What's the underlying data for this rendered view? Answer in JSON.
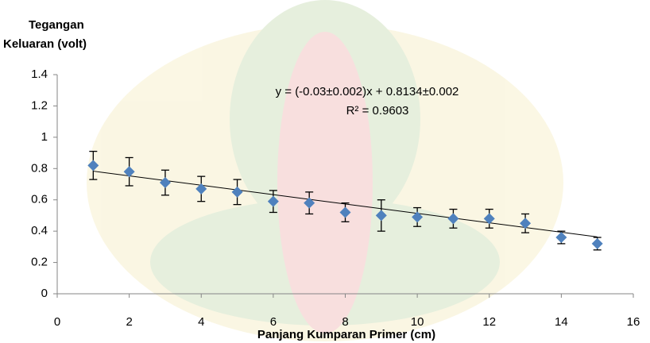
{
  "chart_data": {
    "type": "scatter",
    "ylabel": [
      "Tegangan",
      "Keluaran (volt)"
    ],
    "xlabel": "Panjang Kumparan Primer (cm)",
    "annotations": [
      "y = (-0.03±0.002)x + 0.8134±0.002",
      "R² = 0.9603"
    ],
    "xlim": [
      0,
      16
    ],
    "xticks": [
      0,
      2,
      4,
      6,
      8,
      10,
      12,
      14,
      16
    ],
    "ylim": [
      0,
      1.4
    ],
    "yticks": [
      0,
      0.2,
      0.4,
      0.6,
      0.8,
      1,
      1.2,
      1.4
    ],
    "series": [
      {
        "color": "#4f81bd",
        "x": [
          1,
          2,
          3,
          4,
          5,
          6,
          7,
          8,
          9,
          10,
          11,
          12,
          13,
          14,
          15
        ],
        "values": [
          0.82,
          0.78,
          0.71,
          0.67,
          0.65,
          0.59,
          0.58,
          0.52,
          0.5,
          0.49,
          0.48,
          0.48,
          0.45,
          0.36,
          0.32
        ],
        "errors": [
          0.09,
          0.09,
          0.08,
          0.08,
          0.08,
          0.07,
          0.07,
          0.06,
          0.1,
          0.06,
          0.06,
          0.06,
          0.06,
          0.04,
          0.04
        ]
      }
    ],
    "trendline": {
      "slope": -0.03,
      "intercept": 0.8134,
      "color": "#000000"
    }
  }
}
